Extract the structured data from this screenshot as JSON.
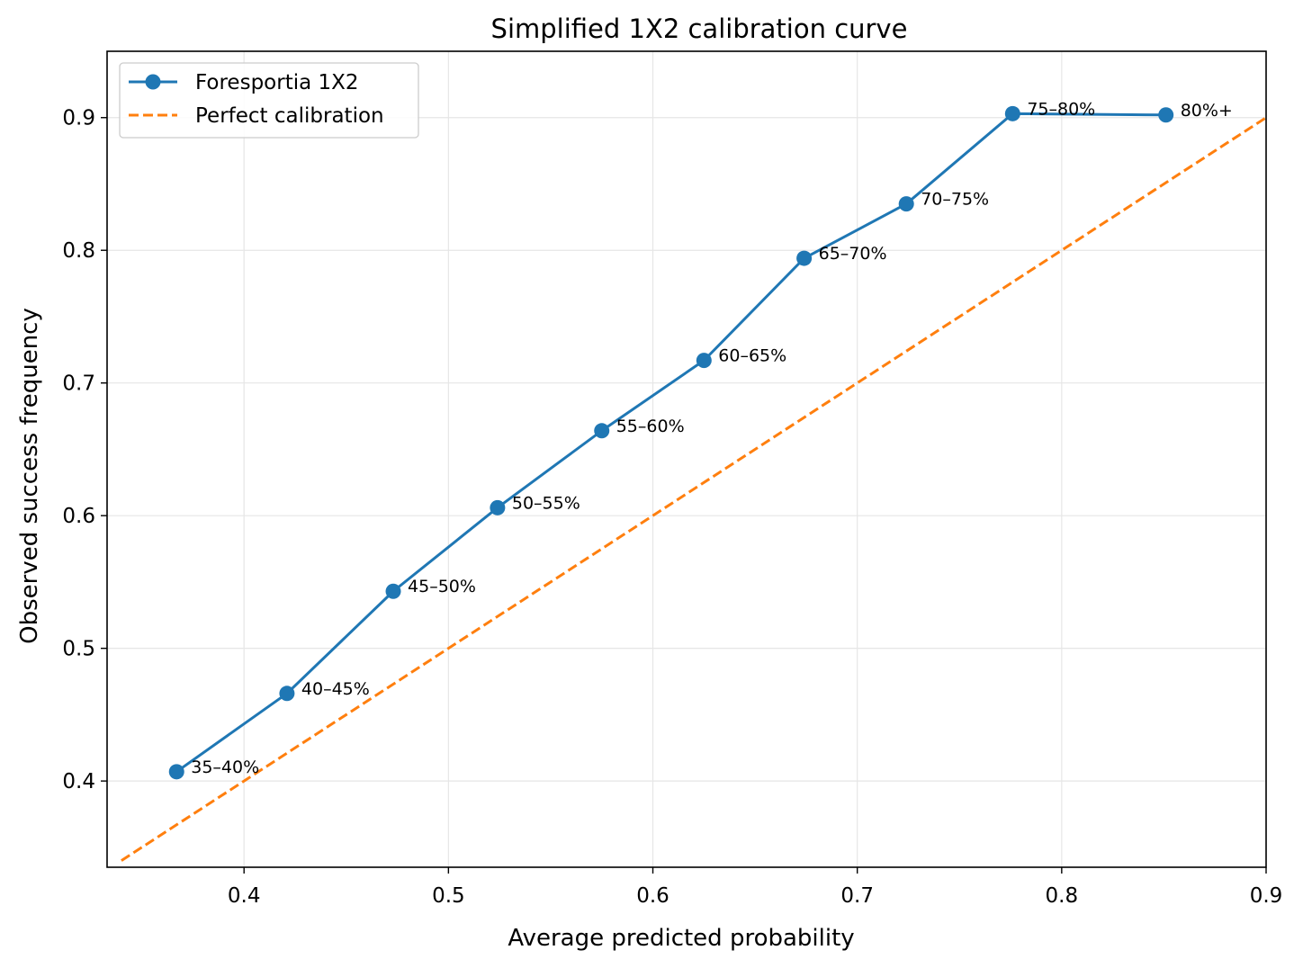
{
  "chart_data": {
    "type": "line",
    "title": "Simplified 1X2 calibration curve",
    "xlabel": "Average predicted probability",
    "ylabel": "Observed success frequency",
    "xlim": [
      0.333,
      0.9
    ],
    "ylim": [
      0.335,
      0.95
    ],
    "xticks": [
      {
        "value": 0.4,
        "label": "0.4"
      },
      {
        "value": 0.5,
        "label": "0.5"
      },
      {
        "value": 0.6,
        "label": "0.6"
      },
      {
        "value": 0.7,
        "label": "0.7"
      },
      {
        "value": 0.8,
        "label": "0.8"
      },
      {
        "value": 0.9,
        "label": "0.9"
      }
    ],
    "yticks": [
      {
        "value": 0.4,
        "label": "0.4"
      },
      {
        "value": 0.5,
        "label": "0.5"
      },
      {
        "value": 0.6,
        "label": "0.6"
      },
      {
        "value": 0.7,
        "label": "0.7"
      },
      {
        "value": 0.8,
        "label": "0.8"
      },
      {
        "value": 0.9,
        "label": "0.9"
      }
    ],
    "grid": true,
    "legend_position": "top-left",
    "series": [
      {
        "name": "Foresportia 1X2",
        "style": "solid-line-with-circle-markers",
        "color": "#1f77b4",
        "points": [
          {
            "x": 0.367,
            "y": 0.407,
            "label": "35–40%"
          },
          {
            "x": 0.421,
            "y": 0.466,
            "label": "40–45%"
          },
          {
            "x": 0.473,
            "y": 0.543,
            "label": "45–50%"
          },
          {
            "x": 0.524,
            "y": 0.606,
            "label": "50–55%"
          },
          {
            "x": 0.575,
            "y": 0.664,
            "label": "55–60%"
          },
          {
            "x": 0.625,
            "y": 0.717,
            "label": "60–65%"
          },
          {
            "x": 0.674,
            "y": 0.794,
            "label": "65–70%"
          },
          {
            "x": 0.724,
            "y": 0.835,
            "label": "70–75%"
          },
          {
            "x": 0.776,
            "y": 0.903,
            "label": "75–80%"
          },
          {
            "x": 0.851,
            "y": 0.902,
            "label": "80%+"
          }
        ]
      },
      {
        "name": "Perfect calibration",
        "style": "dashed-line",
        "color": "#ff7f0e",
        "points": [
          {
            "x": 0.34,
            "y": 0.34
          },
          {
            "x": 0.9,
            "y": 0.9
          }
        ]
      }
    ]
  }
}
